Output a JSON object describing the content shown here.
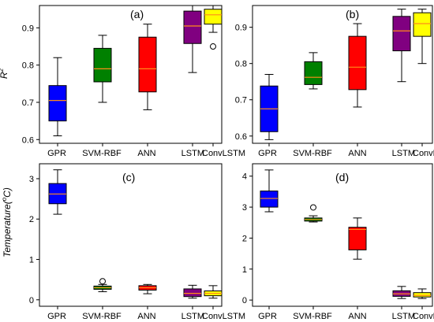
{
  "chart_data": [
    {
      "type": "box",
      "panel_label": "(a)",
      "ylabel": "R",
      "ylabel_sup": "2",
      "categories": [
        "GPR",
        "SVM-RBF",
        "ANN",
        "LSTM",
        "ConvLSTM"
      ],
      "colors": [
        "#0000ff",
        "#008000",
        "#ff0000",
        "#800080",
        "#ffff00"
      ],
      "ylim": [
        0.59,
        0.96
      ],
      "yticks": [
        "0.6",
        "0.7",
        "0.8",
        "0.9"
      ],
      "boxes": [
        {
          "whislo": 0.61,
          "q1": 0.65,
          "med": 0.705,
          "q3": 0.745,
          "whishi": 0.82,
          "fliers": []
        },
        {
          "whislo": 0.7,
          "q1": 0.755,
          "med": 0.79,
          "q3": 0.845,
          "whishi": 0.88,
          "fliers": []
        },
        {
          "whislo": 0.68,
          "q1": 0.728,
          "med": 0.79,
          "q3": 0.875,
          "whishi": 0.91,
          "fliers": []
        },
        {
          "whislo": 0.78,
          "q1": 0.858,
          "med": 0.905,
          "q3": 0.945,
          "whishi": 0.96,
          "fliers": []
        },
        {
          "whislo": 0.888,
          "q1": 0.91,
          "med": 0.935,
          "q3": 0.95,
          "whishi": 0.96,
          "fliers": [
            0.85
          ]
        }
      ]
    },
    {
      "type": "box",
      "panel_label": "(b)",
      "ylabel": "",
      "categories": [
        "GPR",
        "SVM-RBF",
        "ANN",
        "LSTM",
        "ConvLSTM"
      ],
      "colors": [
        "#0000ff",
        "#008000",
        "#ff0000",
        "#800080",
        "#ffff00"
      ],
      "ylim": [
        0.58,
        0.96
      ],
      "yticks": [
        "0.6",
        "0.7",
        "0.8",
        "0.9"
      ],
      "boxes": [
        {
          "whislo": 0.59,
          "q1": 0.612,
          "med": 0.675,
          "q3": 0.738,
          "whishi": 0.77,
          "fliers": []
        },
        {
          "whislo": 0.73,
          "q1": 0.742,
          "med": 0.762,
          "q3": 0.805,
          "whishi": 0.83,
          "fliers": []
        },
        {
          "whislo": 0.68,
          "q1": 0.728,
          "med": 0.79,
          "q3": 0.875,
          "whishi": 0.91,
          "fliers": []
        },
        {
          "whislo": 0.75,
          "q1": 0.835,
          "med": 0.89,
          "q3": 0.93,
          "whishi": 0.95,
          "fliers": []
        },
        {
          "whislo": 0.8,
          "q1": 0.875,
          "med": 0.91,
          "q3": 0.94,
          "whishi": 0.95,
          "fliers": []
        }
      ]
    },
    {
      "type": "box",
      "panel_label": "(c)",
      "ylabel": "Temperature(",
      "ylabel_sup": "o",
      "ylabel_tail": "C)",
      "categories": [
        "GPR",
        "SVM-RBF",
        "ANN",
        "LSTM",
        "ConvLSTM"
      ],
      "colors": [
        "#0000ff",
        "#008000",
        "#ff0000",
        "#800080",
        "#ffff00"
      ],
      "ylim": [
        -0.16,
        3.37
      ],
      "yticks": [
        "0",
        "1",
        "2",
        "3"
      ],
      "boxes": [
        {
          "whislo": 2.12,
          "q1": 2.38,
          "med": 2.62,
          "q3": 2.88,
          "whishi": 3.22,
          "fliers": []
        },
        {
          "whislo": 0.2,
          "q1": 0.26,
          "med": 0.3,
          "q3": 0.34,
          "whishi": 0.38,
          "fliers": [
            0.46
          ]
        },
        {
          "whislo": 0.15,
          "q1": 0.24,
          "med": 0.3,
          "q3": 0.35,
          "whishi": 0.38,
          "fliers": []
        },
        {
          "whislo": 0.04,
          "q1": 0.08,
          "med": 0.16,
          "q3": 0.27,
          "whishi": 0.36,
          "fliers": []
        },
        {
          "whislo": 0.04,
          "q1": 0.1,
          "med": 0.16,
          "q3": 0.22,
          "whishi": 0.35,
          "fliers": []
        }
      ]
    },
    {
      "type": "box",
      "panel_label": "(d)",
      "ylabel": "",
      "categories": [
        "GPR",
        "SVM-RBF",
        "ANN",
        "LSTM",
        "ConvLSTM"
      ],
      "colors": [
        "#0000ff",
        "#008000",
        "#ff0000",
        "#800080",
        "#ffff00"
      ],
      "ylim": [
        -0.2,
        4.4
      ],
      "yticks": [
        "0",
        "1",
        "2",
        "3",
        "4"
      ],
      "boxes": [
        {
          "whislo": 2.85,
          "q1": 3.0,
          "med": 3.28,
          "q3": 3.52,
          "whishi": 4.2,
          "fliers": []
        },
        {
          "whislo": 2.52,
          "q1": 2.55,
          "med": 2.6,
          "q3": 2.65,
          "whishi": 2.72,
          "fliers": [
            2.99
          ]
        },
        {
          "whislo": 1.32,
          "q1": 1.62,
          "med": 2.28,
          "q3": 2.35,
          "whishi": 2.65,
          "fliers": []
        },
        {
          "whislo": 0.05,
          "q1": 0.12,
          "med": 0.2,
          "q3": 0.3,
          "whishi": 0.44,
          "fliers": []
        },
        {
          "whislo": 0.05,
          "q1": 0.1,
          "med": 0.15,
          "q3": 0.24,
          "whishi": 0.36,
          "fliers": []
        }
      ]
    }
  ]
}
